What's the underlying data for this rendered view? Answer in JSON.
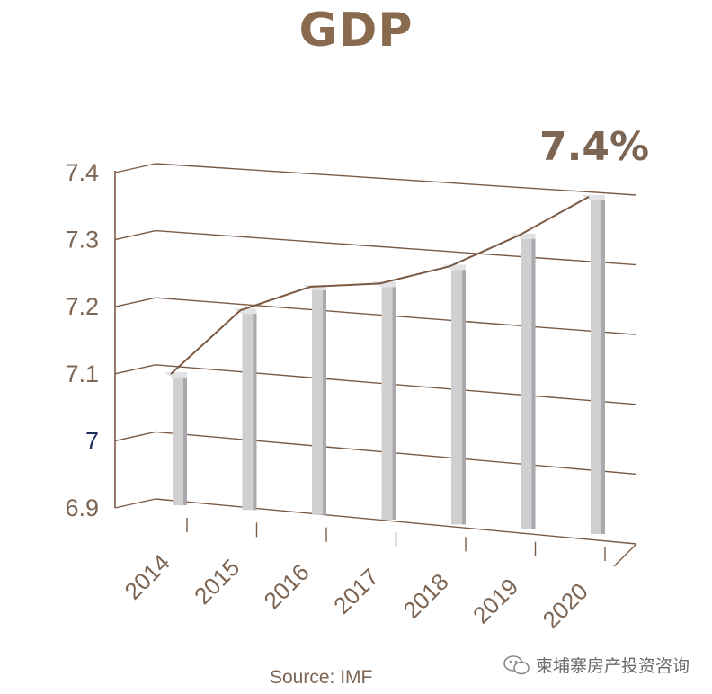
{
  "chart_data": {
    "type": "bar",
    "title": "GDP",
    "categories": [
      "2014",
      "2015",
      "2016",
      "2017",
      "2018",
      "2019",
      "2020"
    ],
    "values": [
      7.1,
      7.2,
      7.24,
      7.25,
      7.28,
      7.33,
      7.39
    ],
    "y_ticks": [
      "6.9",
      "7",
      "7.1",
      "7.2",
      "7.3",
      "7.4"
    ],
    "ylim": [
      6.9,
      7.4
    ],
    "highlight_label": "7.4%",
    "trend_line": true,
    "grid": true,
    "colors": {
      "bar": "#cfcfd1",
      "bar_shade": "#a9a9ad",
      "grid": "#7a5a44",
      "text": "#7d6553",
      "highlight_tick": "#1c2f5e"
    }
  },
  "source": "Source: IMF",
  "watermark": {
    "text": "柬埔寨房产投资咨询",
    "icon": "wechat-icon"
  }
}
